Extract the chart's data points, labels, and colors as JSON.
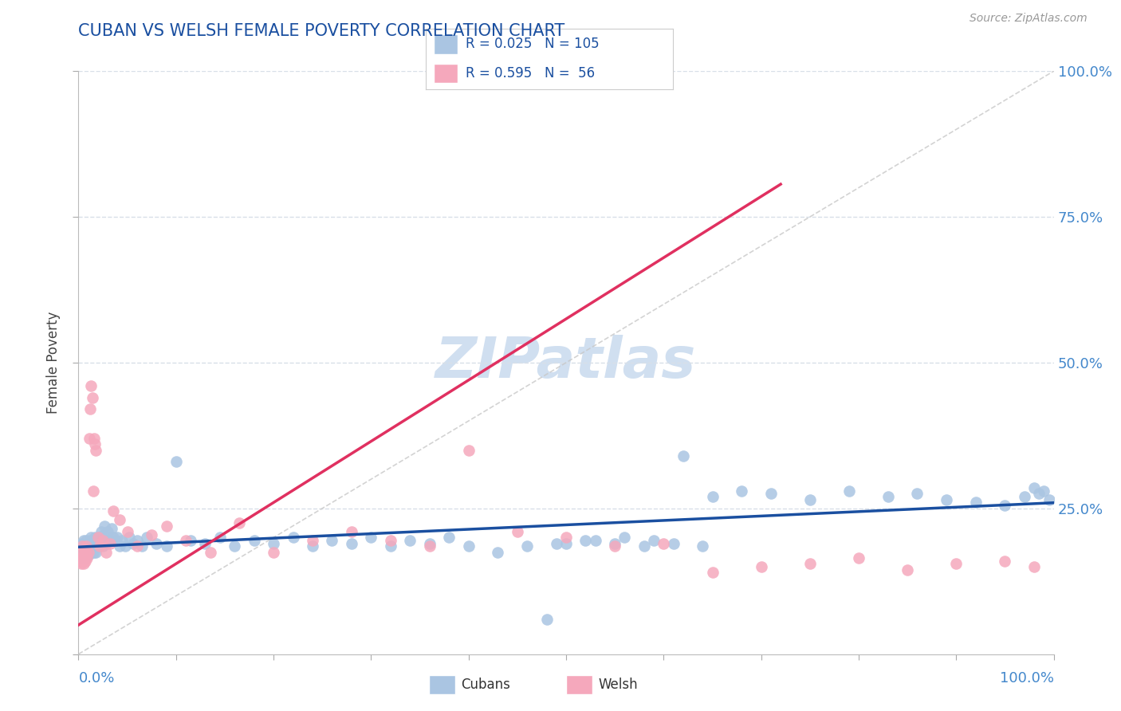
{
  "title": "CUBAN VS WELSH FEMALE POVERTY CORRELATION CHART",
  "source": "Source: ZipAtlas.com",
  "ylabel": "Female Poverty",
  "cubans_R": 0.025,
  "cubans_N": 105,
  "welsh_R": 0.595,
  "welsh_N": 56,
  "cubans_color": "#aac5e2",
  "welsh_color": "#f5a8bc",
  "cubans_line_color": "#1a4fa0",
  "welsh_line_color": "#e03060",
  "ref_line_color": "#c8c8c8",
  "title_color": "#1a4fa0",
  "source_color": "#999999",
  "legend_text_color": "#1a4fa0",
  "watermark_color": "#d0dff0",
  "grid_color": "#d8dfe8",
  "cubans_x": [
    0.001,
    0.002,
    0.003,
    0.003,
    0.004,
    0.005,
    0.005,
    0.006,
    0.006,
    0.007,
    0.007,
    0.008,
    0.008,
    0.009,
    0.009,
    0.01,
    0.01,
    0.011,
    0.011,
    0.012,
    0.012,
    0.013,
    0.013,
    0.014,
    0.014,
    0.015,
    0.015,
    0.016,
    0.016,
    0.017,
    0.017,
    0.018,
    0.018,
    0.019,
    0.02,
    0.021,
    0.022,
    0.023,
    0.024,
    0.025,
    0.026,
    0.027,
    0.028,
    0.03,
    0.032,
    0.034,
    0.036,
    0.038,
    0.04,
    0.042,
    0.045,
    0.048,
    0.052,
    0.056,
    0.06,
    0.065,
    0.07,
    0.08,
    0.09,
    0.1,
    0.115,
    0.13,
    0.145,
    0.16,
    0.18,
    0.2,
    0.22,
    0.24,
    0.26,
    0.28,
    0.3,
    0.32,
    0.34,
    0.36,
    0.38,
    0.4,
    0.43,
    0.46,
    0.49,
    0.52,
    0.55,
    0.58,
    0.61,
    0.64,
    0.48,
    0.5,
    0.53,
    0.56,
    0.59,
    0.62,
    0.65,
    0.68,
    0.71,
    0.75,
    0.79,
    0.83,
    0.86,
    0.89,
    0.92,
    0.95,
    0.97,
    0.98,
    0.985,
    0.99,
    0.995
  ],
  "cubans_y": [
    0.185,
    0.175,
    0.17,
    0.19,
    0.165,
    0.18,
    0.195,
    0.17,
    0.185,
    0.175,
    0.165,
    0.18,
    0.195,
    0.175,
    0.185,
    0.19,
    0.17,
    0.175,
    0.185,
    0.19,
    0.195,
    0.175,
    0.2,
    0.185,
    0.175,
    0.195,
    0.18,
    0.185,
    0.175,
    0.2,
    0.185,
    0.175,
    0.195,
    0.19,
    0.185,
    0.2,
    0.19,
    0.21,
    0.195,
    0.185,
    0.205,
    0.22,
    0.19,
    0.21,
    0.195,
    0.215,
    0.2,
    0.195,
    0.2,
    0.185,
    0.195,
    0.185,
    0.2,
    0.19,
    0.195,
    0.185,
    0.2,
    0.19,
    0.185,
    0.33,
    0.195,
    0.19,
    0.2,
    0.185,
    0.195,
    0.19,
    0.2,
    0.185,
    0.195,
    0.19,
    0.2,
    0.185,
    0.195,
    0.19,
    0.2,
    0.185,
    0.175,
    0.185,
    0.19,
    0.195,
    0.19,
    0.185,
    0.19,
    0.185,
    0.06,
    0.19,
    0.195,
    0.2,
    0.195,
    0.34,
    0.27,
    0.28,
    0.275,
    0.265,
    0.28,
    0.27,
    0.275,
    0.265,
    0.26,
    0.255,
    0.27,
    0.285,
    0.275,
    0.28,
    0.265
  ],
  "welsh_x": [
    0.001,
    0.002,
    0.003,
    0.003,
    0.004,
    0.004,
    0.005,
    0.005,
    0.006,
    0.006,
    0.007,
    0.007,
    0.008,
    0.008,
    0.009,
    0.01,
    0.011,
    0.012,
    0.013,
    0.014,
    0.015,
    0.016,
    0.017,
    0.018,
    0.02,
    0.022,
    0.025,
    0.028,
    0.032,
    0.036,
    0.042,
    0.05,
    0.06,
    0.075,
    0.09,
    0.11,
    0.135,
    0.165,
    0.2,
    0.24,
    0.28,
    0.32,
    0.36,
    0.4,
    0.45,
    0.5,
    0.55,
    0.6,
    0.65,
    0.7,
    0.75,
    0.8,
    0.85,
    0.9,
    0.95,
    0.98
  ],
  "welsh_y": [
    0.16,
    0.165,
    0.155,
    0.175,
    0.165,
    0.185,
    0.155,
    0.17,
    0.165,
    0.18,
    0.16,
    0.175,
    0.17,
    0.185,
    0.165,
    0.175,
    0.37,
    0.42,
    0.46,
    0.44,
    0.28,
    0.37,
    0.36,
    0.35,
    0.2,
    0.185,
    0.195,
    0.175,
    0.19,
    0.245,
    0.23,
    0.21,
    0.185,
    0.205,
    0.22,
    0.195,
    0.175,
    0.225,
    0.175,
    0.195,
    0.21,
    0.195,
    0.185,
    0.35,
    0.21,
    0.2,
    0.185,
    0.19,
    0.14,
    0.15,
    0.155,
    0.165,
    0.145,
    0.155,
    0.16,
    0.15
  ],
  "xlim": [
    0,
    1.0
  ],
  "ylim": [
    0,
    1.0
  ]
}
